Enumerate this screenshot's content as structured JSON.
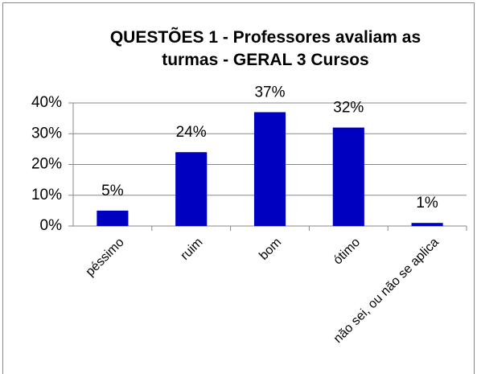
{
  "chart_data": {
    "type": "bar",
    "title": "QUESTÕES 1 - Professores avaliam as turmas - GERAL 3 Cursos",
    "categories": [
      "péssimo",
      "ruim",
      "bom",
      "ótimo",
      "não sei, ou não se aplica"
    ],
    "values": [
      5,
      24,
      37,
      32,
      1
    ],
    "value_labels": [
      "5%",
      "24%",
      "37%",
      "32%",
      "1%"
    ],
    "color": "#0000c0",
    "ylim": [
      0,
      40
    ],
    "yticks": [
      {
        "value": 0,
        "label": "0%"
      },
      {
        "value": 10,
        "label": "10%"
      },
      {
        "value": 20,
        "label": "20%"
      },
      {
        "value": 30,
        "label": "30%"
      },
      {
        "value": 40,
        "label": "40%"
      }
    ],
    "grid": true
  }
}
